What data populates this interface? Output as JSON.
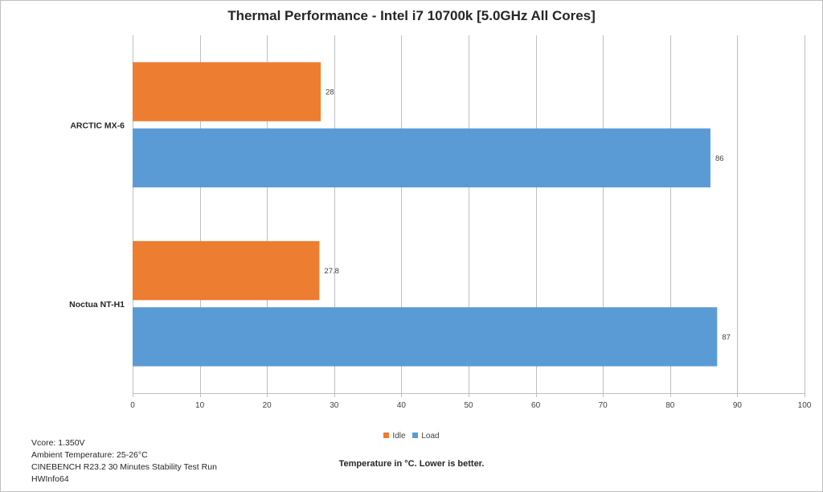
{
  "chart_data": {
    "type": "bar",
    "orientation": "horizontal",
    "title": "Thermal Performance - Intel i7 10700k [5.0GHz All Cores]",
    "categories": [
      "ARCTIC MX-6",
      "Noctua NT-H1"
    ],
    "series": [
      {
        "name": "Idle",
        "color": "#ed7d31",
        "values": [
          28,
          27.8
        ],
        "labels": [
          "28",
          "27.8"
        ]
      },
      {
        "name": "Load",
        "color": "#5b9bd5",
        "values": [
          86,
          87
        ],
        "labels": [
          "86",
          "87"
        ]
      }
    ],
    "xlabel": "Temperature in °C. Lower is better.",
    "ylabel": "",
    "xlim": [
      0,
      100
    ],
    "x_ticks": [
      "0",
      "10",
      "20",
      "30",
      "40",
      "50",
      "60",
      "70",
      "80",
      "90",
      "100"
    ],
    "grid": "vertical",
    "legend_position": "bottom-center",
    "notes": [
      "Vcore: 1.350V",
      "Ambient Temperature: 25-26°C",
      "CINEBENCH R23.2 30 Minutes Stability Test Run",
      "HWInfo64"
    ]
  }
}
